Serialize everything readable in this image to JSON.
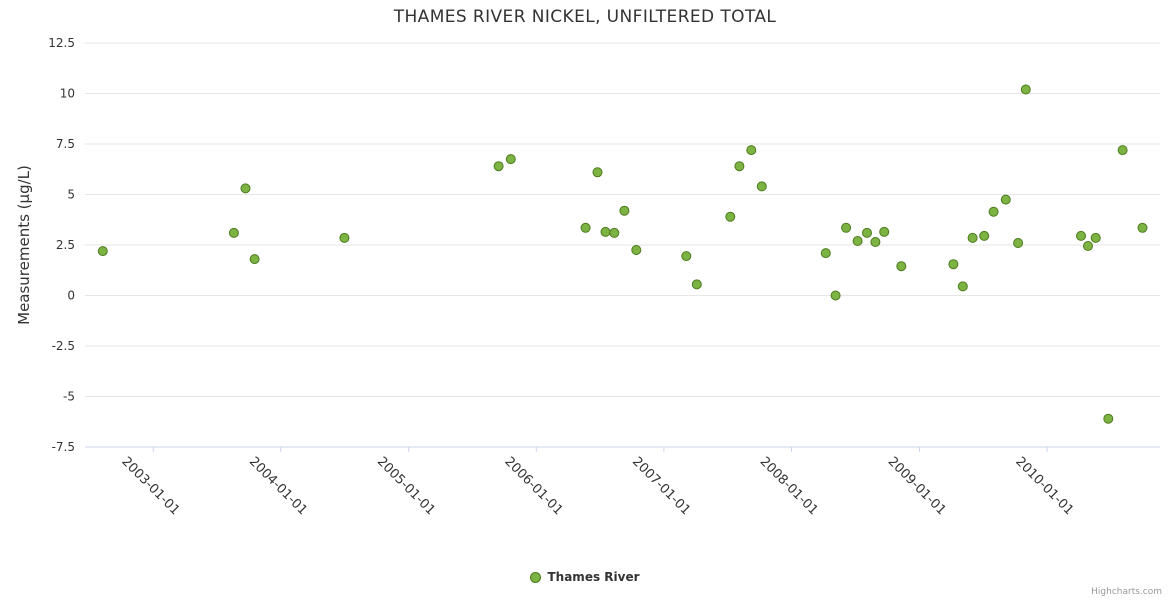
{
  "chart": {
    "credit": "Highcharts.com"
  },
  "chart_data": {
    "type": "scatter",
    "title": "THAMES RIVER NICKEL, UNFILTERED TOTAL",
    "xlabel": "",
    "ylabel": "Measurements (µg/L)",
    "ylim": [
      -7.5,
      12.5
    ],
    "xlim": [
      "2002-06-20",
      "2010-11-20"
    ],
    "y_ticks": [
      12.5,
      10,
      7.5,
      5,
      2.5,
      0,
      -2.5,
      -5,
      -7.5
    ],
    "x_ticks": [
      "2003-01-01",
      "2004-01-01",
      "2005-01-01",
      "2006-01-01",
      "2007-01-01",
      "2008-01-01",
      "2009-01-01",
      "2010-01-01"
    ],
    "grid": "horizontal",
    "legend_position": "bottom-center",
    "colors": {
      "grid": "#e6e6e6",
      "axis": "#ccd6eb"
    },
    "series": [
      {
        "name": "Thames River",
        "marker_color": "#7cb342",
        "marker_stroke": "#4c7a1d",
        "points": [
          {
            "x": "2002-08-10",
            "y": 2.2
          },
          {
            "x": "2003-08-20",
            "y": 3.1
          },
          {
            "x": "2003-09-22",
            "y": 5.3
          },
          {
            "x": "2003-10-18",
            "y": 1.8
          },
          {
            "x": "2004-07-01",
            "y": 2.85
          },
          {
            "x": "2005-09-15",
            "y": 6.4
          },
          {
            "x": "2005-10-20",
            "y": 6.75
          },
          {
            "x": "2006-05-22",
            "y": 3.35
          },
          {
            "x": "2006-06-25",
            "y": 6.1
          },
          {
            "x": "2006-07-18",
            "y": 3.15
          },
          {
            "x": "2006-08-12",
            "y": 3.1
          },
          {
            "x": "2006-09-10",
            "y": 4.2
          },
          {
            "x": "2006-10-14",
            "y": 2.25
          },
          {
            "x": "2007-03-06",
            "y": 1.95
          },
          {
            "x": "2007-04-05",
            "y": 0.55
          },
          {
            "x": "2007-07-10",
            "y": 3.9
          },
          {
            "x": "2007-08-05",
            "y": 6.4
          },
          {
            "x": "2007-09-08",
            "y": 7.2
          },
          {
            "x": "2007-10-08",
            "y": 5.4
          },
          {
            "x": "2008-04-08",
            "y": 2.1
          },
          {
            "x": "2008-05-06",
            "y": 0.0
          },
          {
            "x": "2008-06-05",
            "y": 3.35
          },
          {
            "x": "2008-07-08",
            "y": 2.7
          },
          {
            "x": "2008-08-04",
            "y": 3.1
          },
          {
            "x": "2008-08-28",
            "y": 2.65
          },
          {
            "x": "2008-09-22",
            "y": 3.15
          },
          {
            "x": "2008-11-10",
            "y": 1.45
          },
          {
            "x": "2009-04-08",
            "y": 1.55
          },
          {
            "x": "2009-05-05",
            "y": 0.45
          },
          {
            "x": "2009-06-02",
            "y": 2.85
          },
          {
            "x": "2009-07-05",
            "y": 2.95
          },
          {
            "x": "2009-08-01",
            "y": 4.15
          },
          {
            "x": "2009-09-05",
            "y": 4.75
          },
          {
            "x": "2009-10-10",
            "y": 2.6
          },
          {
            "x": "2009-11-01",
            "y": 10.2
          },
          {
            "x": "2010-04-08",
            "y": 2.95
          },
          {
            "x": "2010-04-28",
            "y": 2.45
          },
          {
            "x": "2010-05-20",
            "y": 2.85
          },
          {
            "x": "2010-06-25",
            "y": -6.1
          },
          {
            "x": "2010-08-05",
            "y": 7.2
          },
          {
            "x": "2010-10-01",
            "y": 3.35
          }
        ]
      }
    ]
  }
}
